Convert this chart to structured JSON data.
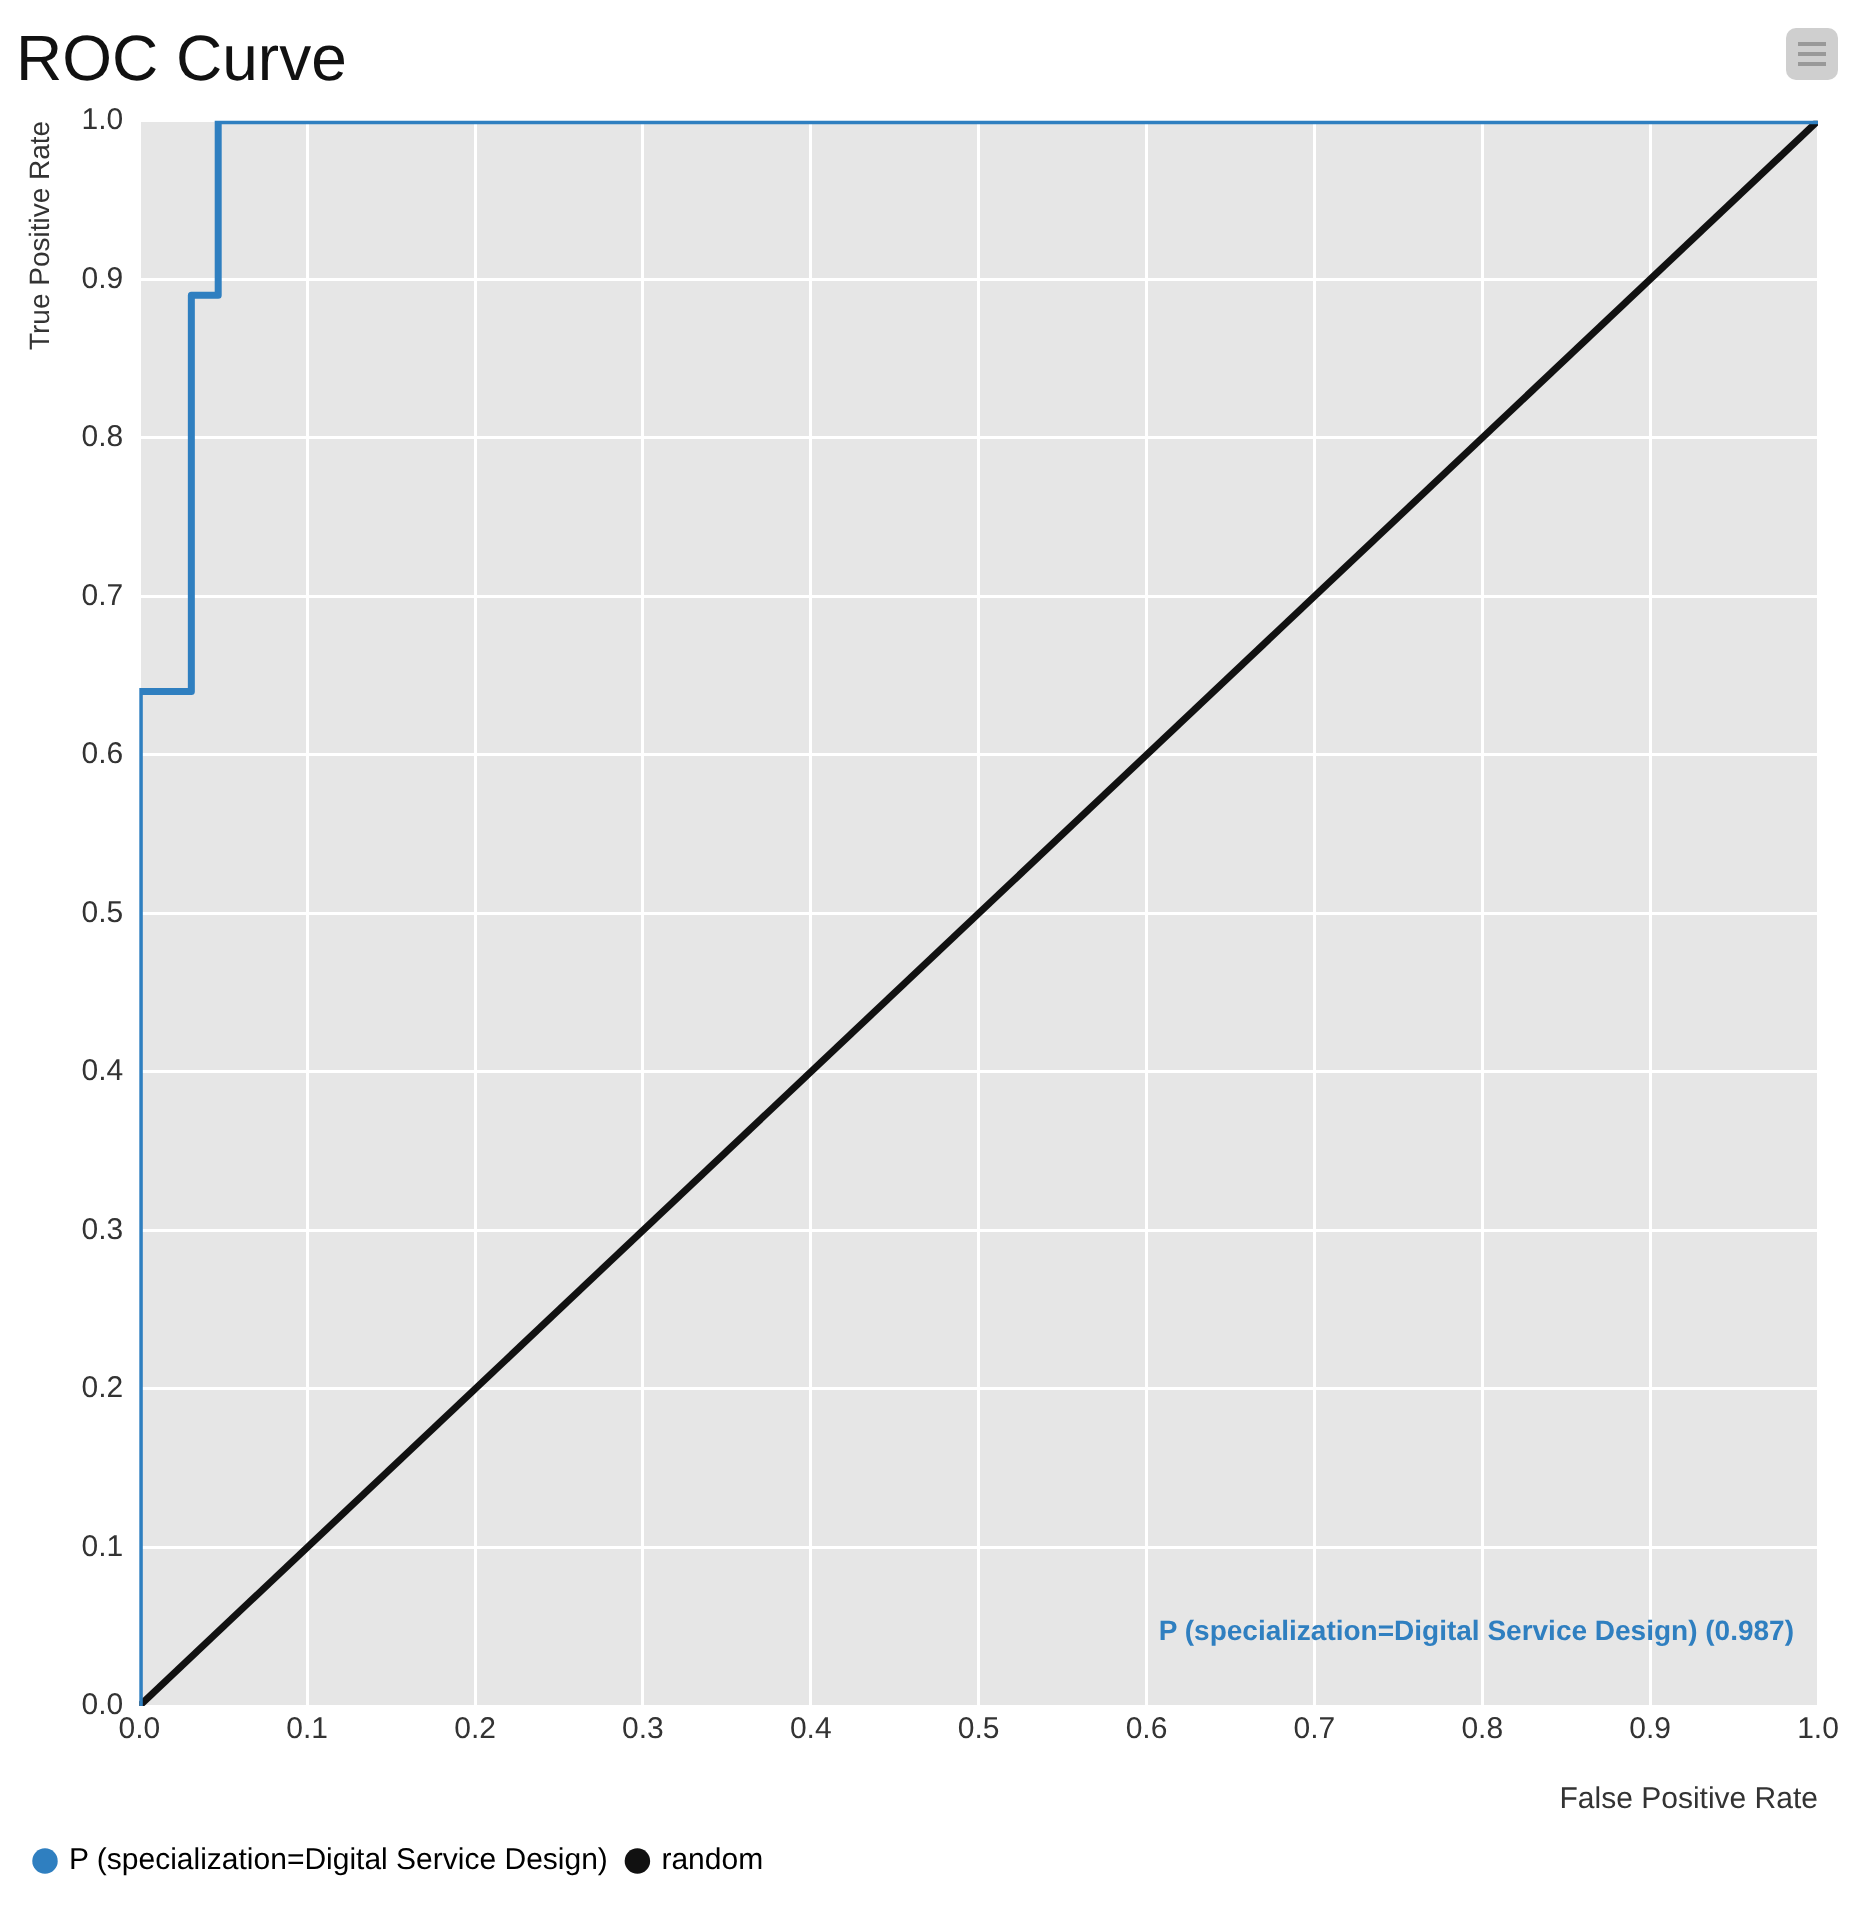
{
  "chart_data": {
    "type": "line",
    "title": "ROC Curve",
    "xlabel": "False Positive Rate",
    "ylabel": "True Positive Rate",
    "series": [
      {
        "name": "P (specialization=Digital Service Design)",
        "color": "#2f7fc0",
        "x": [
          0,
          0,
          0.031,
          0.031,
          0.047,
          0.047,
          1
        ],
        "values": [
          0,
          0.64,
          0.64,
          0.89,
          0.89,
          1,
          1
        ]
      },
      {
        "name": "random",
        "color": "#111111",
        "x": [
          0,
          1
        ],
        "values": [
          0,
          1
        ]
      }
    ],
    "xlim": [
      0,
      1
    ],
    "ylim": [
      0,
      1
    ],
    "xticks": [
      {
        "value": 0,
        "label": "0.0"
      },
      0.1,
      0.2,
      0.3,
      0.4,
      0.5,
      0.6,
      0.7,
      0.8,
      0.9,
      {
        "value": 1,
        "label": "1.0"
      }
    ],
    "yticks": [
      {
        "value": 0,
        "label": "0.0"
      },
      0.1,
      0.2,
      0.3,
      0.4,
      0.5,
      0.6,
      0.7,
      0.8,
      0.9,
      {
        "value": 1,
        "label": "1.0"
      }
    ],
    "annotations": [
      "P (specialization=Digital Service Design) (0.987)"
    ],
    "grid": true,
    "legend": "bottom left",
    "marker": "none",
    "line_style": "solid"
  }
}
